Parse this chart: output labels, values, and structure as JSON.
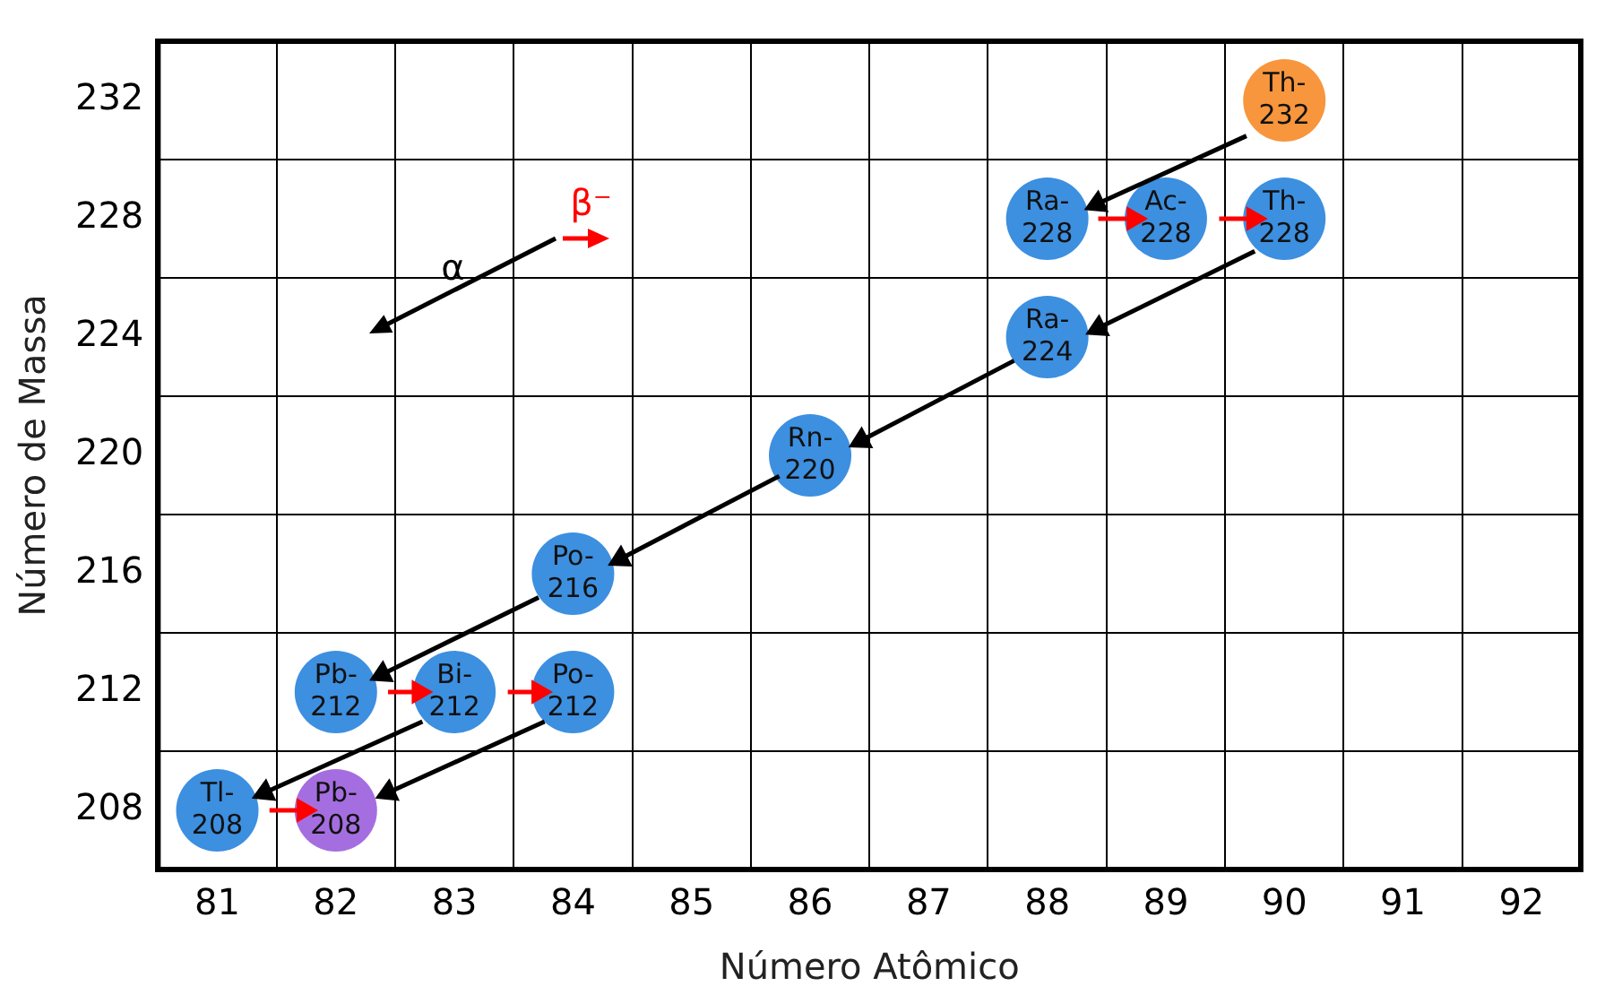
{
  "chart_data": {
    "type": "scatter",
    "xlabel": "Número Atômico",
    "ylabel": "Número de Massa",
    "xlim": [
      80.5,
      92.5
    ],
    "ylim": [
      206,
      234
    ],
    "xticks": [
      {
        "value": 80.5,
        "label": null
      },
      81,
      {
        "value": 81.5,
        "label": null
      },
      82,
      {
        "value": 82.5,
        "label": null
      },
      83,
      {
        "value": 83.5,
        "label": null
      },
      84,
      {
        "value": 84.5,
        "label": null
      },
      85,
      {
        "value": 85.5,
        "label": null
      },
      86,
      {
        "value": 86.5,
        "label": null
      },
      87,
      {
        "value": 87.5,
        "label": null
      },
      88,
      {
        "value": 88.5,
        "label": null
      },
      89,
      {
        "value": 89.5,
        "label": null
      },
      90,
      {
        "value": 90.5,
        "label": null
      },
      91,
      {
        "value": 91.5,
        "label": null
      },
      92,
      {
        "value": 92.5,
        "label": null
      }
    ],
    "yticks": [
      {
        "value": 206,
        "label": null
      },
      208,
      {
        "value": 210,
        "label": null
      },
      212,
      {
        "value": 214,
        "label": null
      },
      216,
      {
        "value": 218,
        "label": null
      },
      220,
      {
        "value": 222,
        "label": null
      },
      224,
      {
        "value": 226,
        "label": null
      },
      228,
      {
        "value": 230,
        "label": null
      },
      232,
      {
        "value": 234,
        "label": null
      }
    ],
    "grid": true,
    "legend": "top left",
    "series": [
      {
        "x": [
          90,
          88,
          89,
          90,
          88,
          86,
          84,
          82,
          83,
          84,
          81,
          82
        ],
        "values": [
          232,
          228,
          228,
          228,
          224,
          220,
          216,
          212,
          212,
          212,
          208,
          208
        ],
        "colors": [
          "#f7963d",
          "#3d8fe0",
          "#3d8fe0",
          "#3d8fe0",
          "#3d8fe0",
          "#3d8fe0",
          "#3d8fe0",
          "#3d8fe0",
          "#3d8fe0",
          "#3d8fe0",
          "#3d8fe0",
          "#a56ee0"
        ]
      },
      {
        "type": "line",
        "name": "α",
        "color": "#000000",
        "marker": "triangle",
        "x": [
          89.68,
          88.42,
          null,
          89.75,
          88.43,
          null,
          87.72,
          86.43,
          null,
          85.74,
          84.4,
          null,
          83.71,
          82.39,
          null,
          82.73,
          81.4,
          null,
          83.76,
          82.44
        ],
        "values": [
          230.8,
          228.5,
          null,
          226.9,
          224.3,
          null,
          223.2,
          220.5,
          null,
          219.3,
          216.5,
          null,
          215.2,
          212.6,
          null,
          211,
          208.6,
          null,
          211,
          208.6
        ]
      },
      {
        "type": "line",
        "name": "β⁻",
        "color": "#ff0000",
        "marker": "triangle",
        "x": [
          88.43,
          88.73,
          null,
          89.45,
          89.74,
          null,
          82.44,
          82.7,
          null,
          83.45,
          83.71,
          null,
          81.44,
          81.73
        ],
        "values": [
          228,
          228,
          null,
          228,
          228,
          null,
          212,
          212,
          null,
          212,
          212,
          null,
          208,
          208
        ]
      }
    ],
    "annotations": [
      {
        "text": "Th-232",
        "x": 90,
        "y": 232
      },
      {
        "text": "Ra-228",
        "x": 88,
        "y": 228
      },
      {
        "text": "Ac-228",
        "x": 89,
        "y": 228
      },
      {
        "text": "Th-228",
        "x": 90,
        "y": 228
      },
      {
        "text": "Ra-224",
        "x": 88,
        "y": 224
      },
      {
        "text": "Rn-220",
        "x": 86,
        "y": 220
      },
      {
        "text": "Po-216",
        "x": 84,
        "y": 216
      },
      {
        "text": "Pb-212",
        "x": 82,
        "y": 212
      },
      {
        "text": "Bi-212",
        "x": 83,
        "y": 212
      },
      {
        "text": "Po-212",
        "x": 84,
        "y": 212
      },
      {
        "text": "Tl-208",
        "x": 81,
        "y": 208
      },
      {
        "text": "Pb-208",
        "x": 82,
        "y": 208
      }
    ]
  }
}
